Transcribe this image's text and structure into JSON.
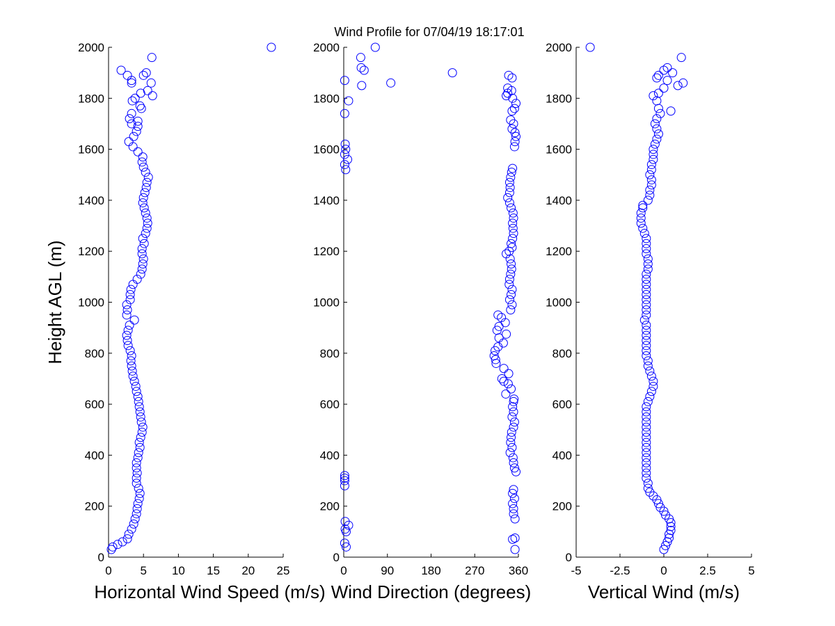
{
  "title": "Wind Profile for  07/04/19 18:17:01",
  "colors": {
    "marker": "#0000ff",
    "axis": "#000000",
    "background": "#ffffff"
  },
  "chart_data": [
    {
      "type": "scatter",
      "marker": "circle",
      "xlabel": "Horizontal Wind Speed (m/s)",
      "ylabel": "Height AGL (m)",
      "xlim": [
        0,
        25
      ],
      "ylim": [
        0,
        2000
      ],
      "xticks": [
        "0",
        "5",
        "10",
        "15",
        "20",
        "25"
      ],
      "yticks": [
        "0",
        "200",
        "400",
        "600",
        "800",
        "1000",
        "1200",
        "1400",
        "1600",
        "1800",
        "2000"
      ],
      "points": [
        [
          0.4,
          30
        ],
        [
          0.6,
          40
        ],
        [
          1.3,
          50
        ],
        [
          2.0,
          60
        ],
        [
          2.7,
          72
        ],
        [
          2.9,
          90
        ],
        [
          3.3,
          110
        ],
        [
          3.6,
          130
        ],
        [
          3.8,
          150
        ],
        [
          4.0,
          170
        ],
        [
          4.1,
          190
        ],
        [
          4.2,
          210
        ],
        [
          4.4,
          230
        ],
        [
          4.5,
          250
        ],
        [
          4.3,
          270
        ],
        [
          4.0,
          290
        ],
        [
          4.0,
          310
        ],
        [
          4.1,
          330
        ],
        [
          4.0,
          350
        ],
        [
          4.0,
          370
        ],
        [
          4.2,
          390
        ],
        [
          4.3,
          410
        ],
        [
          4.5,
          430
        ],
        [
          4.4,
          450
        ],
        [
          4.6,
          470
        ],
        [
          4.8,
          490
        ],
        [
          4.9,
          510
        ],
        [
          4.7,
          530
        ],
        [
          4.6,
          550
        ],
        [
          4.5,
          570
        ],
        [
          4.4,
          590
        ],
        [
          4.3,
          610
        ],
        [
          4.2,
          630
        ],
        [
          4.0,
          650
        ],
        [
          3.9,
          670
        ],
        [
          3.7,
          690
        ],
        [
          3.5,
          710
        ],
        [
          3.4,
          730
        ],
        [
          3.3,
          750
        ],
        [
          3.2,
          770
        ],
        [
          3.3,
          790
        ],
        [
          3.1,
          810
        ],
        [
          2.8,
          830
        ],
        [
          2.7,
          850
        ],
        [
          2.6,
          870
        ],
        [
          2.8,
          890
        ],
        [
          3.0,
          910
        ],
        [
          3.7,
          930
        ],
        [
          2.6,
          950
        ],
        [
          2.7,
          970
        ],
        [
          2.6,
          990
        ],
        [
          3.1,
          1010
        ],
        [
          3.1,
          1030
        ],
        [
          3.2,
          1050
        ],
        [
          3.5,
          1070
        ],
        [
          4.1,
          1090
        ],
        [
          4.6,
          1110
        ],
        [
          4.8,
          1130
        ],
        [
          4.9,
          1150
        ],
        [
          5.0,
          1170
        ],
        [
          4.8,
          1190
        ],
        [
          4.8,
          1210
        ],
        [
          5.1,
          1230
        ],
        [
          4.9,
          1250
        ],
        [
          5.3,
          1270
        ],
        [
          5.5,
          1290
        ],
        [
          5.6,
          1310
        ],
        [
          5.5,
          1330
        ],
        [
          5.3,
          1350
        ],
        [
          5.1,
          1370
        ],
        [
          4.9,
          1390
        ],
        [
          5.0,
          1410
        ],
        [
          5.2,
          1430
        ],
        [
          5.4,
          1450
        ],
        [
          5.5,
          1470
        ],
        [
          5.7,
          1490
        ],
        [
          5.3,
          1510
        ],
        [
          5.0,
          1530
        ],
        [
          4.8,
          1550
        ],
        [
          4.9,
          1570
        ],
        [
          4.2,
          1590
        ],
        [
          3.5,
          1610
        ],
        [
          2.9,
          1630
        ],
        [
          3.6,
          1650
        ],
        [
          4.0,
          1670
        ],
        [
          4.2,
          1690
        ],
        [
          3.3,
          1700
        ],
        [
          4.2,
          1710
        ],
        [
          3.0,
          1720
        ],
        [
          3.3,
          1740
        ],
        [
          4.7,
          1760
        ],
        [
          4.5,
          1770
        ],
        [
          3.4,
          1790
        ],
        [
          3.8,
          1800
        ],
        [
          6.3,
          1810
        ],
        [
          4.6,
          1820
        ],
        [
          5.6,
          1830
        ],
        [
          6.1,
          1860
        ],
        [
          3.3,
          1860
        ],
        [
          3.3,
          1870
        ],
        [
          2.7,
          1890
        ],
        [
          5.0,
          1890
        ],
        [
          1.8,
          1910
        ],
        [
          5.4,
          1900
        ],
        [
          6.2,
          1960
        ],
        [
          23.3,
          2000
        ]
      ]
    },
    {
      "type": "scatter",
      "marker": "circle",
      "xlabel": "Wind Direction (degrees)",
      "ylabel": "",
      "xlim": [
        0,
        360
      ],
      "ylim": [
        0,
        2000
      ],
      "xticks": [
        "0",
        "90",
        "180",
        "270",
        "360"
      ],
      "yticks": [
        "0",
        "200",
        "400",
        "600",
        "800",
        "1000",
        "1200",
        "1400",
        "1600",
        "1800",
        "2000"
      ],
      "points": [
        [
          353,
          30
        ],
        [
          5,
          40
        ],
        [
          2,
          55
        ],
        [
          353,
          75
        ],
        [
          348,
          70
        ],
        [
          5,
          100
        ],
        [
          3,
          110
        ],
        [
          10,
          125
        ],
        [
          3,
          140
        ],
        [
          353,
          150
        ],
        [
          350,
          170
        ],
        [
          350,
          190
        ],
        [
          348,
          210
        ],
        [
          352,
          230
        ],
        [
          348,
          250
        ],
        [
          350,
          265
        ],
        [
          2,
          280
        ],
        [
          2,
          300
        ],
        [
          2,
          310
        ],
        [
          2,
          320
        ],
        [
          355,
          335
        ],
        [
          352,
          350
        ],
        [
          350,
          370
        ],
        [
          349,
          390
        ],
        [
          343,
          410
        ],
        [
          347,
          430
        ],
        [
          344,
          450
        ],
        [
          345,
          470
        ],
        [
          346,
          490
        ],
        [
          350,
          510
        ],
        [
          352,
          530
        ],
        [
          347,
          550
        ],
        [
          350,
          570
        ],
        [
          348,
          590
        ],
        [
          350,
          610
        ],
        [
          351,
          620
        ],
        [
          334,
          640
        ],
        [
          345,
          660
        ],
        [
          339,
          680
        ],
        [
          330,
          690
        ],
        [
          326,
          700
        ],
        [
          340,
          720
        ],
        [
          330,
          740
        ],
        [
          314,
          760
        ],
        [
          313,
          775
        ],
        [
          310,
          790
        ],
        [
          312,
          810
        ],
        [
          318,
          825
        ],
        [
          329,
          840
        ],
        [
          320,
          860
        ],
        [
          335,
          875
        ],
        [
          316,
          890
        ],
        [
          320,
          905
        ],
        [
          333,
          920
        ],
        [
          325,
          940
        ],
        [
          318,
          950
        ],
        [
          344,
          970
        ],
        [
          347,
          990
        ],
        [
          342,
          1010
        ],
        [
          345,
          1030
        ],
        [
          347,
          1050
        ],
        [
          341,
          1070
        ],
        [
          342,
          1090
        ],
        [
          344,
          1110
        ],
        [
          346,
          1130
        ],
        [
          345,
          1150
        ],
        [
          343,
          1170
        ],
        [
          335,
          1190
        ],
        [
          341,
          1200
        ],
        [
          347,
          1215
        ],
        [
          345,
          1230
        ],
        [
          348,
          1250
        ],
        [
          350,
          1270
        ],
        [
          349,
          1290
        ],
        [
          348,
          1310
        ],
        [
          350,
          1330
        ],
        [
          349,
          1350
        ],
        [
          345,
          1370
        ],
        [
          342,
          1390
        ],
        [
          338,
          1410
        ],
        [
          342,
          1430
        ],
        [
          343,
          1450
        ],
        [
          342,
          1470
        ],
        [
          344,
          1490
        ],
        [
          346,
          1510
        ],
        [
          348,
          1525
        ],
        [
          4,
          1520
        ],
        [
          2,
          1540
        ],
        [
          8,
          1560
        ],
        [
          2,
          1580
        ],
        [
          4,
          1600
        ],
        [
          3,
          1620
        ],
        [
          352,
          1610
        ],
        [
          353,
          1630
        ],
        [
          355,
          1650
        ],
        [
          353,
          1665
        ],
        [
          347,
          1680
        ],
        [
          350,
          1700
        ],
        [
          344,
          1715
        ],
        [
          2,
          1740
        ],
        [
          347,
          1750
        ],
        [
          352,
          1760
        ],
        [
          355,
          1780
        ],
        [
          348,
          1800
        ],
        [
          335,
          1810
        ],
        [
          338,
          1820
        ],
        [
          346,
          1830
        ],
        [
          338,
          1840
        ],
        [
          2,
          1870
        ],
        [
          10,
          1790
        ],
        [
          37,
          1850
        ],
        [
          97,
          1860
        ],
        [
          42,
          1910
        ],
        [
          36,
          1920
        ],
        [
          35,
          1960
        ],
        [
          65,
          2000
        ],
        [
          224,
          1900
        ],
        [
          347,
          1880
        ],
        [
          340,
          1890
        ]
      ]
    },
    {
      "type": "scatter",
      "marker": "circle",
      "xlabel": "Vertical Wind (m/s)",
      "ylabel": "",
      "xlim": [
        -5,
        5
      ],
      "ylim": [
        0,
        2000
      ],
      "xticks": [
        "-5",
        "-2.5",
        "0",
        "2.5",
        "5"
      ],
      "yticks": [
        "0",
        "200",
        "400",
        "600",
        "800",
        "1000",
        "1200",
        "1400",
        "1600",
        "1800",
        "2000"
      ],
      "points": [
        [
          0.0,
          30
        ],
        [
          0.1,
          45
        ],
        [
          0.2,
          60
        ],
        [
          0.3,
          75
        ],
        [
          0.3,
          90
        ],
        [
          0.4,
          105
        ],
        [
          0.4,
          120
        ],
        [
          0.4,
          135
        ],
        [
          0.3,
          150
        ],
        [
          0.1,
          165
        ],
        [
          0.0,
          180
        ],
        [
          -0.2,
          195
        ],
        [
          -0.3,
          210
        ],
        [
          -0.4,
          225
        ],
        [
          -0.6,
          240
        ],
        [
          -0.8,
          255
        ],
        [
          -0.9,
          270
        ],
        [
          -0.9,
          290
        ],
        [
          -1.0,
          310
        ],
        [
          -1.0,
          330
        ],
        [
          -1.0,
          350
        ],
        [
          -1.0,
          370
        ],
        [
          -1.0,
          390
        ],
        [
          -1.0,
          410
        ],
        [
          -1.0,
          430
        ],
        [
          -1.0,
          450
        ],
        [
          -1.0,
          470
        ],
        [
          -1.0,
          490
        ],
        [
          -1.0,
          510
        ],
        [
          -1.0,
          530
        ],
        [
          -1.0,
          550
        ],
        [
          -1.0,
          570
        ],
        [
          -1.0,
          590
        ],
        [
          -0.9,
          610
        ],
        [
          -0.8,
          630
        ],
        [
          -0.7,
          650
        ],
        [
          -0.6,
          670
        ],
        [
          -0.6,
          690
        ],
        [
          -0.7,
          710
        ],
        [
          -0.8,
          730
        ],
        [
          -0.9,
          750
        ],
        [
          -0.9,
          770
        ],
        [
          -1.0,
          790
        ],
        [
          -1.0,
          810
        ],
        [
          -1.0,
          830
        ],
        [
          -1.0,
          850
        ],
        [
          -1.0,
          870
        ],
        [
          -1.0,
          890
        ],
        [
          -1.0,
          910
        ],
        [
          -1.1,
          930
        ],
        [
          -1.0,
          950
        ],
        [
          -1.0,
          970
        ],
        [
          -1.0,
          990
        ],
        [
          -1.0,
          1010
        ],
        [
          -1.0,
          1030
        ],
        [
          -1.0,
          1050
        ],
        [
          -1.0,
          1070
        ],
        [
          -1.0,
          1090
        ],
        [
          -1.0,
          1110
        ],
        [
          -0.9,
          1130
        ],
        [
          -0.9,
          1150
        ],
        [
          -0.9,
          1170
        ],
        [
          -1.0,
          1190
        ],
        [
          -1.0,
          1210
        ],
        [
          -1.0,
          1230
        ],
        [
          -1.0,
          1250
        ],
        [
          -1.1,
          1270
        ],
        [
          -1.2,
          1290
        ],
        [
          -1.3,
          1310
        ],
        [
          -1.3,
          1330
        ],
        [
          -1.3,
          1350
        ],
        [
          -1.2,
          1370
        ],
        [
          -1.2,
          1380
        ],
        [
          -0.9,
          1400
        ],
        [
          -0.8,
          1420
        ],
        [
          -0.8,
          1440
        ],
        [
          -0.7,
          1460
        ],
        [
          -0.7,
          1480
        ],
        [
          -0.8,
          1500
        ],
        [
          -0.7,
          1520
        ],
        [
          -0.7,
          1540
        ],
        [
          -0.6,
          1560
        ],
        [
          -0.6,
          1580
        ],
        [
          -0.6,
          1600
        ],
        [
          -0.5,
          1620
        ],
        [
          -0.4,
          1640
        ],
        [
          -0.3,
          1660
        ],
        [
          -0.4,
          1680
        ],
        [
          -0.5,
          1700
        ],
        [
          -0.4,
          1720
        ],
        [
          -0.2,
          1740
        ],
        [
          0.4,
          1750
        ],
        [
          -0.3,
          1760
        ],
        [
          -0.4,
          1790
        ],
        [
          -0.6,
          1810
        ],
        [
          -0.3,
          1820
        ],
        [
          0.0,
          1840
        ],
        [
          0.2,
          1870
        ],
        [
          0.8,
          1850
        ],
        [
          1.1,
          1860
        ],
        [
          -0.4,
          1880
        ],
        [
          -0.3,
          1890
        ],
        [
          0.0,
          1910
        ],
        [
          0.2,
          1920
        ],
        [
          0.5,
          1900
        ],
        [
          1.0,
          1960
        ],
        [
          -4.2,
          2000
        ]
      ]
    }
  ]
}
